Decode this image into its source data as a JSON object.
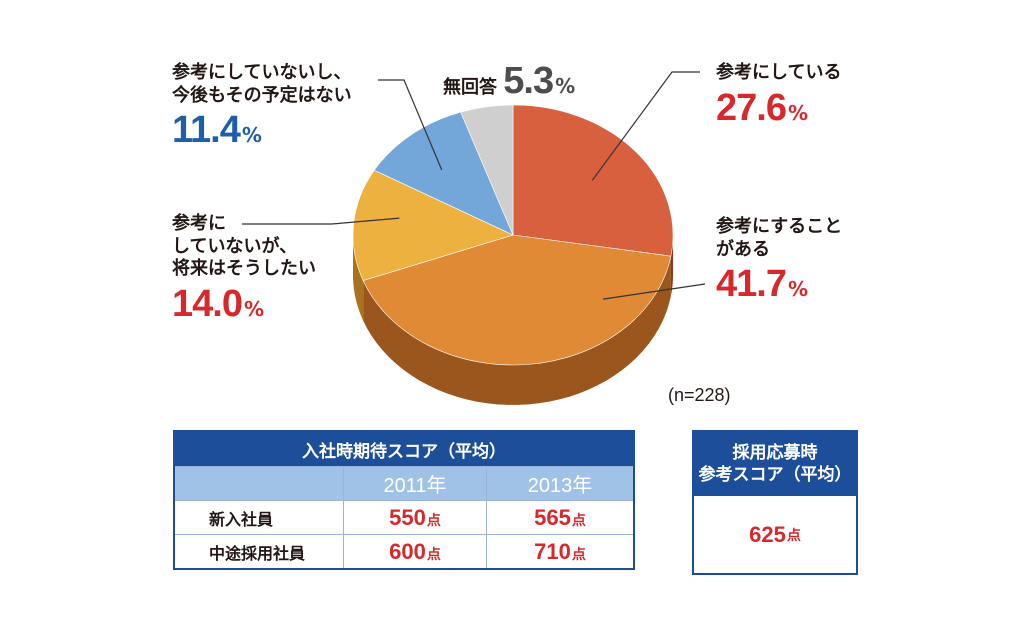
{
  "chart_data": {
    "type": "pie",
    "slices": [
      {
        "label_lines": [
          "参考にしている"
        ],
        "value": 27.6,
        "color": "#d9603f",
        "side": "#8f3420"
      },
      {
        "label_lines": [
          "参考にすること",
          "がある"
        ],
        "value": 41.7,
        "color": "#e08a36",
        "side": "#9a561c"
      },
      {
        "label_lines": [
          "参考に",
          "していないが、",
          "将来はそうしたい"
        ],
        "value": 14.0,
        "color": "#ecb13f",
        "side": "#a8721f"
      },
      {
        "label_lines": [
          "参考にしていないし、",
          "今後もその予定はない"
        ],
        "value": 11.4,
        "color": "#74a7d9",
        "side": "#3e6f9f"
      },
      {
        "label_lines": [
          "無回答"
        ],
        "value": 5.3,
        "color": "#cfcfcf",
        "side": "#8c8c8c"
      }
    ],
    "value_texts": [
      "27.6",
      "41.7",
      "14.0",
      "11.4",
      "5.3"
    ],
    "percent_sign": "%",
    "note": "(n=228)"
  },
  "score_table": {
    "title": "入社時期待スコア（平均）",
    "years": [
      "2011年",
      "2013年"
    ],
    "rows": [
      {
        "label": "新入社員",
        "values": [
          "550",
          "565"
        ]
      },
      {
        "label": "中途採用社員",
        "values": [
          "600",
          "710"
        ]
      }
    ],
    "unit": "点"
  },
  "application_box": {
    "title_lines": [
      "採用応募時",
      "参考スコア（平均）"
    ],
    "value": "625",
    "unit": "点"
  },
  "colors": {
    "red_text": "#d7282c",
    "blue_text": "#1f5fa8",
    "table_blue": "#1d4e9a",
    "table_light": "#9fc2e6"
  }
}
